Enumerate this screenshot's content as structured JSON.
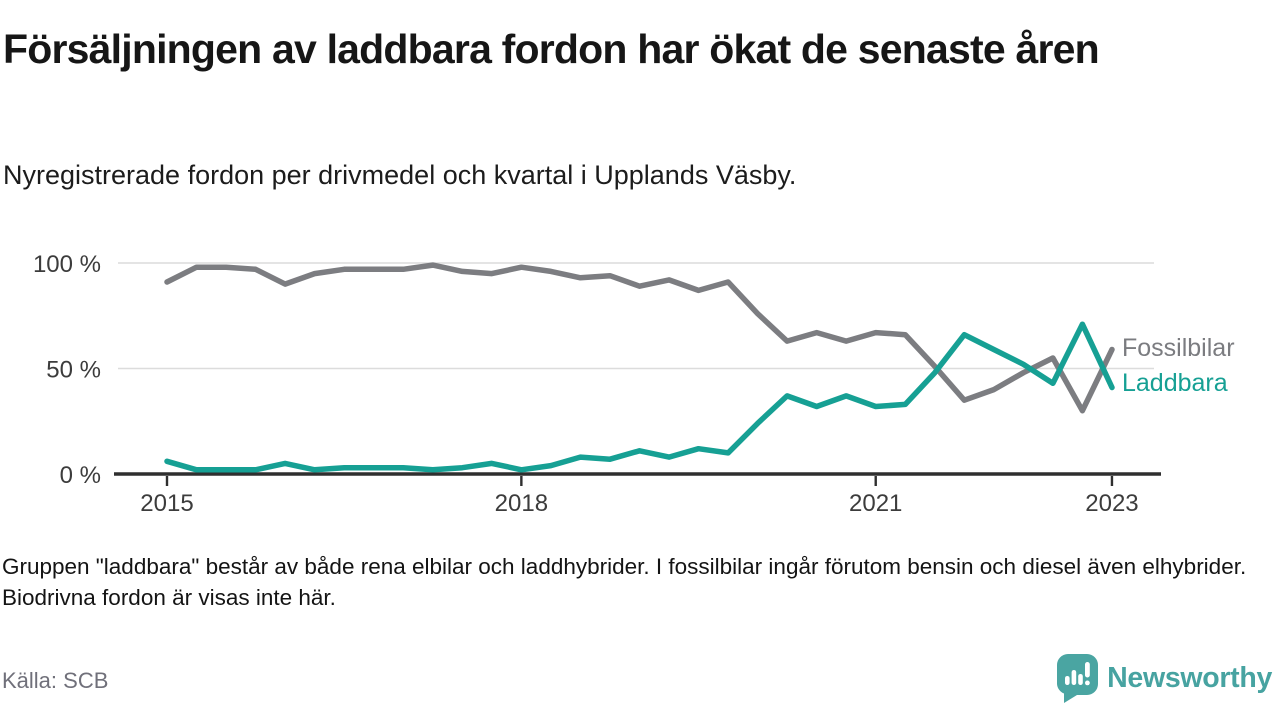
{
  "header": {
    "title": "Försäljningen av laddbara fordon har ökat de senaste åren",
    "subtitle": "Nyregistrerade fordon per drivmedel och kvartal i Upplands Väsby."
  },
  "chart_data": {
    "type": "line",
    "unit": "%",
    "grid": "horizontal",
    "legend_position": "right-of-line-ends",
    "quarters": [
      "2015 Q1",
      "2015 Q2",
      "2015 Q3",
      "2015 Q4",
      "2016 Q1",
      "2016 Q2",
      "2016 Q3",
      "2016 Q4",
      "2017 Q1",
      "2017 Q2",
      "2017 Q3",
      "2017 Q4",
      "2018 Q1",
      "2018 Q2",
      "2018 Q3",
      "2018 Q4",
      "2019 Q1",
      "2019 Q2",
      "2019 Q3",
      "2019 Q4",
      "2020 Q1",
      "2020 Q2",
      "2020 Q3",
      "2020 Q4",
      "2021 Q1",
      "2021 Q2",
      "2021 Q3",
      "2021 Q4",
      "2022 Q1",
      "2022 Q2",
      "2022 Q3",
      "2022 Q4",
      "2023 Q1"
    ],
    "series": [
      {
        "name": "Fossilbilar",
        "color": "#7c7d81",
        "values": [
          91,
          98,
          98,
          97,
          90,
          95,
          97,
          97,
          97,
          99,
          96,
          95,
          98,
          96,
          93,
          94,
          89,
          92,
          87,
          91,
          76,
          63,
          67,
          63,
          67,
          66,
          51,
          35,
          40,
          48,
          55,
          30,
          59
        ]
      },
      {
        "name": "Laddbara",
        "color": "#16a094",
        "values": [
          6,
          2,
          2,
          2,
          5,
          2,
          3,
          3,
          3,
          2,
          3,
          5,
          2,
          4,
          8,
          7,
          11,
          8,
          12,
          10,
          24,
          37,
          32,
          37,
          32,
          33,
          48,
          66,
          59,
          52,
          43,
          71,
          41
        ]
      }
    ],
    "y_axis": {
      "range": [
        0,
        100
      ],
      "ticks": [
        {
          "label": "100 %",
          "value": 100
        },
        {
          "label": "50 %",
          "value": 50
        },
        {
          "label": "0 %",
          "value": 0
        }
      ]
    },
    "x_axis": {
      "ticks": [
        {
          "label": "2015",
          "index": 0
        },
        {
          "label": "2018",
          "index": 12
        },
        {
          "label": "2021",
          "index": 24
        },
        {
          "label": "2023",
          "index": 32
        }
      ]
    }
  },
  "footer": {
    "note": "Gruppen \"laddbara\" består av både rena elbilar och laddhybrider. I fossilbilar ingår förutom bensin och diesel även elhybrider. Biodrivna fordon är visas inte här.",
    "source": "Källa: SCB",
    "brand": "Newsworthy",
    "logo_icon": "speech-bubble-bar-chart-exclamation-icon"
  }
}
